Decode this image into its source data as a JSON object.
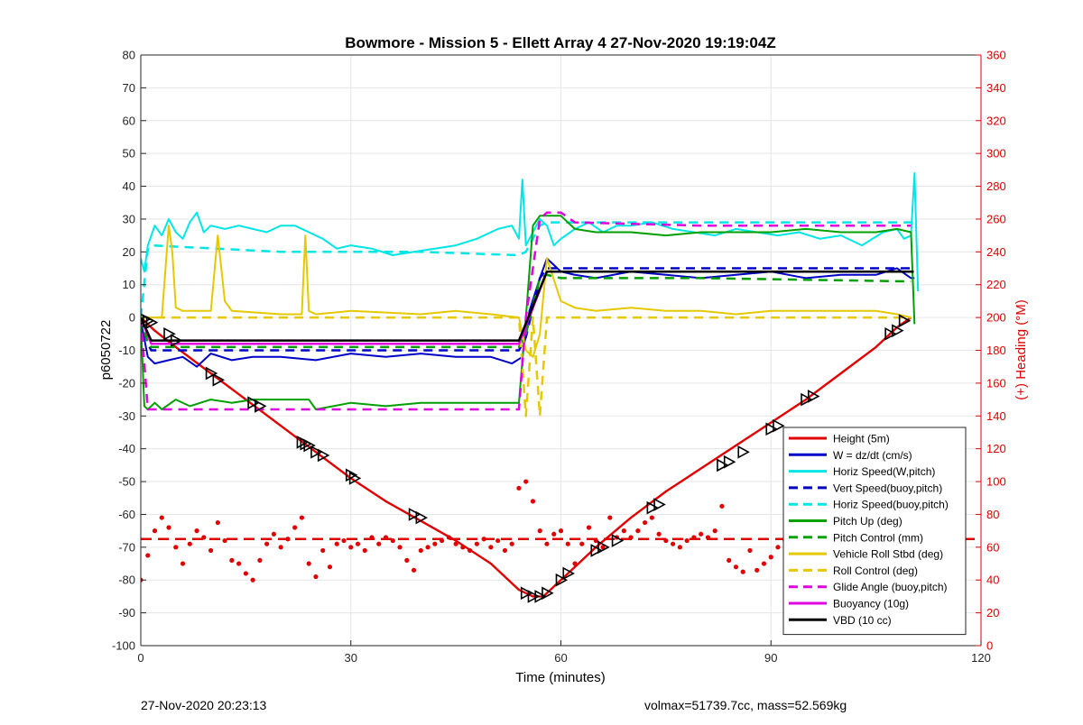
{
  "chart_data": {
    "type": "line",
    "title": "Bowmore - Mission 5 - Ellett Array 4 27-Nov-2020 19:19:04Z",
    "xlabel": "Time (minutes)",
    "ylabel": "p6050722",
    "y2label": "(+) Heading (°M)",
    "xlim": [
      0,
      120
    ],
    "ylim": [
      -100,
      80
    ],
    "y2lim": [
      0,
      360
    ],
    "xticks": [
      "0",
      "30",
      "60",
      "90",
      "120"
    ],
    "xtick_values": [
      0,
      30,
      60,
      90,
      120
    ],
    "yticks": [
      "-100",
      "-90",
      "-80",
      "-70",
      "-60",
      "-50",
      "-40",
      "-30",
      "-20",
      "-10",
      "0",
      "10",
      "20",
      "30",
      "40",
      "50",
      "60",
      "70",
      "80"
    ],
    "ytick_values": [
      -100,
      -90,
      -80,
      -70,
      -60,
      -50,
      -40,
      -30,
      -20,
      -10,
      0,
      10,
      20,
      30,
      40,
      50,
      60,
      70,
      80
    ],
    "y2ticks": [
      "0",
      "20",
      "40",
      "60",
      "80",
      "100",
      "120",
      "140",
      "160",
      "180",
      "200",
      "220",
      "240",
      "260",
      "280",
      "300",
      "320",
      "340",
      "360"
    ],
    "y2tick_values": [
      0,
      20,
      40,
      60,
      80,
      100,
      120,
      140,
      160,
      180,
      200,
      220,
      240,
      260,
      280,
      300,
      320,
      340,
      360
    ],
    "grid": true,
    "legend_position": "bottom-right",
    "series": [
      {
        "name": "Height (5m)",
        "color": "#e00000",
        "style": "solid",
        "width": 2.4,
        "x": [
          0,
          2,
          5,
          10,
          15,
          20,
          25,
          30,
          35,
          40,
          45,
          50,
          54,
          56,
          57.5,
          59,
          62,
          65,
          70,
          75,
          80,
          85,
          90,
          95,
          100,
          105,
          108,
          110
        ],
        "y": [
          0,
          -4,
          -9,
          -17,
          -25,
          -33,
          -41,
          -49,
          -56,
          -62,
          -68,
          -75,
          -83,
          -85,
          -85,
          -82,
          -76,
          -70,
          -61,
          -53,
          -46,
          -39,
          -32,
          -25,
          -17,
          -9,
          -3,
          0
        ]
      },
      {
        "name": "W = dz/dt (cm/s)",
        "color": "#0000c8",
        "style": "solid",
        "width": 2,
        "x": [
          0,
          1,
          2,
          4,
          6,
          8,
          10,
          13,
          16,
          20,
          25,
          30,
          35,
          40,
          45,
          50,
          53,
          54.5,
          55.5,
          57,
          58,
          59,
          60,
          62,
          65,
          70,
          75,
          80,
          85,
          90,
          95,
          100,
          105,
          108,
          110,
          110.5
        ],
        "y": [
          -1,
          -12,
          -14,
          -13,
          -12,
          -15,
          -11,
          -13,
          -12,
          -12,
          -13,
          -11,
          -12,
          -11,
          -12,
          -12,
          -14,
          -12,
          2,
          12,
          18,
          16,
          14,
          13,
          12,
          14,
          13,
          12,
          13,
          14,
          12,
          13,
          13,
          15,
          12,
          12
        ]
      },
      {
        "name": "Horiz Speed(W,pitch)",
        "color": "#00e5e5",
        "style": "solid",
        "width": 2,
        "x": [
          0,
          0.5,
          1,
          2,
          3,
          4,
          5,
          6,
          7,
          8,
          9,
          10,
          12,
          14,
          16,
          18,
          20,
          22,
          24,
          26,
          28,
          30,
          33,
          36,
          39,
          42,
          45,
          48,
          51,
          53,
          54,
          54.5,
          55,
          56,
          57,
          58,
          59,
          60,
          62,
          64,
          66,
          68,
          70,
          73,
          76,
          79,
          82,
          85,
          88,
          91,
          94,
          97,
          100,
          103,
          106,
          108,
          109,
          110,
          110.5,
          111
        ],
        "y": [
          18,
          14,
          22,
          28,
          25,
          30,
          26,
          24,
          29,
          32,
          26,
          28,
          27,
          28,
          27,
          26,
          28,
          28,
          26,
          24,
          21,
          22,
          21,
          19,
          20,
          21,
          22,
          24,
          27,
          28,
          24,
          42,
          22,
          26,
          30,
          28,
          22,
          24,
          27,
          29,
          26,
          28,
          28,
          29,
          27,
          26,
          25,
          27,
          26,
          25,
          26,
          24,
          25,
          22,
          26,
          27,
          24,
          25,
          44,
          8
        ]
      },
      {
        "name": "Vert Speed(buoy,pitch)",
        "color": "#0000c8",
        "style": "dashed",
        "width": 2.5,
        "x": [
          0,
          1,
          1.5,
          20,
          40,
          54,
          55,
          57,
          58,
          60,
          90,
          110
        ],
        "y": [
          0,
          -8,
          -10,
          -10,
          -10,
          -10,
          -6,
          12,
          15,
          15,
          15,
          15
        ]
      },
      {
        "name": "Horiz Speed(buoy,pitch)",
        "color": "#00e5e5",
        "style": "dashed",
        "width": 2.5,
        "x": [
          0,
          1,
          1.5,
          20,
          40,
          54,
          55,
          57,
          58,
          60,
          90,
          110
        ],
        "y": [
          0,
          21,
          22,
          20,
          20,
          19,
          20,
          28,
          29,
          29,
          29,
          29
        ]
      },
      {
        "name": "Pitch Up (deg)",
        "color": "#00a000",
        "style": "solid",
        "width": 2,
        "x": [
          0,
          0.5,
          1,
          2,
          3,
          5,
          7,
          10,
          13,
          16,
          20,
          24,
          25,
          30,
          35,
          40,
          45,
          50,
          53,
          54,
          55,
          56,
          57,
          58,
          60,
          62,
          65,
          70,
          75,
          80,
          85,
          90,
          95,
          100,
          105,
          108,
          110,
          110.5
        ],
        "y": [
          -1,
          -27,
          -28,
          -26,
          -28,
          -25,
          -27,
          -25,
          -26,
          -25,
          -25,
          -25,
          -28,
          -26,
          -27,
          -26,
          -26,
          -26,
          -26,
          -26,
          0,
          28,
          31,
          31,
          31,
          27,
          26,
          26,
          25,
          26,
          26,
          26,
          27,
          26,
          26,
          27,
          26,
          -2
        ]
      },
      {
        "name": "Pitch Control (mm)",
        "color": "#00a000",
        "style": "dashed",
        "width": 2.5,
        "x": [
          0,
          1,
          1.5,
          20,
          40,
          54,
          55,
          57,
          58,
          60,
          80,
          110
        ],
        "y": [
          0,
          -8,
          -9,
          -9,
          -9,
          -9,
          -5,
          12,
          13,
          12,
          12,
          11
        ]
      },
      {
        "name": "Vehicle Roll Stbd (deg)",
        "color": "#e6c800",
        "style": "solid",
        "width": 2,
        "x": [
          0,
          3,
          4,
          4.5,
          5,
          6,
          10,
          11,
          12,
          13,
          20,
          23,
          23.5,
          24,
          25,
          30,
          40,
          45,
          50,
          54,
          55,
          56,
          57,
          58,
          60,
          62,
          65,
          70,
          75,
          80,
          85,
          90,
          95,
          100,
          105,
          108,
          110
        ],
        "y": [
          0,
          0,
          28,
          20,
          3,
          2,
          2,
          25,
          5,
          2,
          1,
          1,
          25,
          2,
          1,
          2,
          1,
          2,
          1,
          0,
          -10,
          -12,
          -5,
          18,
          5,
          3,
          2,
          3,
          2,
          2,
          1,
          2,
          2,
          2,
          2,
          1,
          0
        ]
      },
      {
        "name": "Roll Control (deg)",
        "color": "#e6c800",
        "style": "dashed",
        "width": 2.5,
        "x": [
          0,
          10,
          20,
          30,
          40,
          50,
          54,
          55,
          56,
          57,
          58,
          60,
          70,
          80,
          90,
          100,
          110
        ],
        "y": [
          0,
          0,
          0,
          0,
          0,
          0,
          0,
          -30,
          0,
          -30,
          0,
          0,
          0,
          0,
          0,
          0,
          0
        ]
      },
      {
        "name": "Glide Angle (buoy,pitch)",
        "color": "#e000e0",
        "style": "dashed",
        "width": 2.5,
        "x": [
          0,
          1,
          1.5,
          20,
          40,
          54,
          55,
          57,
          58,
          60,
          62,
          80,
          110
        ],
        "y": [
          0,
          -28,
          -28,
          -28,
          -28,
          -28,
          0,
          30,
          32,
          32,
          29,
          28,
          28
        ]
      },
      {
        "name": "Buoyancy (10g)",
        "color": "#e000e0",
        "style": "solid",
        "width": 2.5,
        "x": [
          0,
          1.5,
          2,
          20,
          40,
          54,
          58,
          60,
          80,
          110
        ],
        "y": [
          0,
          -8,
          -8,
          -8,
          -8,
          -8,
          14,
          14,
          14,
          14
        ]
      },
      {
        "name": "VBD (10 cc)",
        "color": "#000000",
        "style": "solid",
        "width": 2.5,
        "x": [
          0,
          1.5,
          2,
          20,
          40,
          54,
          58,
          60,
          80,
          110,
          110.4
        ],
        "y": [
          0,
          -7,
          -7,
          -7,
          -7,
          -7,
          14,
          14,
          14,
          14,
          14
        ]
      }
    ],
    "heading_series": {
      "color": "#e00000",
      "x": [
        0,
        1,
        2,
        3,
        4,
        5,
        6,
        7,
        8,
        9,
        10,
        11,
        12,
        13,
        14,
        15,
        16,
        17,
        18,
        19,
        20,
        21,
        22,
        23,
        24,
        25,
        26,
        27,
        28,
        29,
        30,
        31,
        32,
        33,
        34,
        35,
        36,
        37,
        38,
        39,
        40,
        41,
        42,
        43,
        44,
        45,
        46,
        47,
        48,
        49,
        50,
        51,
        52,
        53,
        54,
        55,
        56,
        57,
        58,
        59,
        60,
        61,
        62,
        63,
        64,
        65,
        66,
        67,
        68,
        69,
        70,
        71,
        72,
        73,
        74,
        75,
        76,
        77,
        78,
        79,
        80,
        81,
        82,
        83,
        84,
        85,
        86,
        87,
        88,
        89,
        90,
        91,
        92,
        93,
        94,
        95,
        96,
        97,
        98,
        99,
        100,
        101,
        102,
        103,
        104,
        105,
        106,
        107,
        108,
        109,
        110
      ],
      "y": [
        40,
        55,
        70,
        78,
        72,
        60,
        50,
        62,
        70,
        66,
        58,
        75,
        64,
        52,
        50,
        44,
        40,
        52,
        62,
        68,
        60,
        65,
        72,
        78,
        50,
        42,
        58,
        48,
        62,
        64,
        60,
        62,
        58,
        66,
        62,
        66,
        64,
        60,
        52,
        46,
        58,
        60,
        62,
        64,
        66,
        62,
        60,
        58,
        62,
        65,
        60,
        64,
        58,
        62,
        96,
        100,
        88,
        70,
        62,
        68,
        70,
        62,
        50,
        62,
        72,
        64,
        60,
        78,
        66,
        70,
        66,
        70,
        75,
        78,
        68,
        64,
        62,
        60,
        64,
        66,
        68,
        66,
        70,
        85,
        52,
        48,
        45,
        58,
        46,
        50,
        54,
        60,
        64,
        68,
        90,
        72,
        62,
        64,
        58,
        55,
        52,
        48,
        56,
        58,
        60,
        55,
        64,
        50,
        68,
        60,
        50
      ]
    },
    "heading_ref": {
      "value": 65,
      "color": "#e00000",
      "style": "dashed"
    },
    "dive_markers": {
      "x": [
        0.5,
        1,
        1.5,
        4,
        5,
        10,
        11,
        16,
        17,
        23,
        23.5,
        24,
        25,
        26,
        30,
        30.5,
        39,
        40,
        55,
        56,
        57,
        58,
        60,
        61,
        65,
        66,
        68,
        73,
        74,
        83,
        84,
        86,
        90,
        91,
        95,
        96,
        107,
        108,
        109
      ],
      "y": [
        -0.5,
        -1,
        -1.5,
        -5,
        -7,
        -17,
        -19,
        -26,
        -27,
        -38,
        -38.5,
        -39,
        -41,
        -42,
        -48,
        -49,
        -60,
        -61,
        -84,
        -85,
        -85,
        -84,
        -80,
        -78,
        -71,
        -70,
        -68,
        -58,
        -57,
        -45,
        -44,
        -41,
        -34,
        -33,
        -25,
        -24,
        -5,
        -4,
        -1
      ]
    }
  },
  "footer": {
    "left_text": "27-Nov-2020 20:23:13",
    "right_text": "volmax=51739.7cc, mass=52.569kg"
  }
}
